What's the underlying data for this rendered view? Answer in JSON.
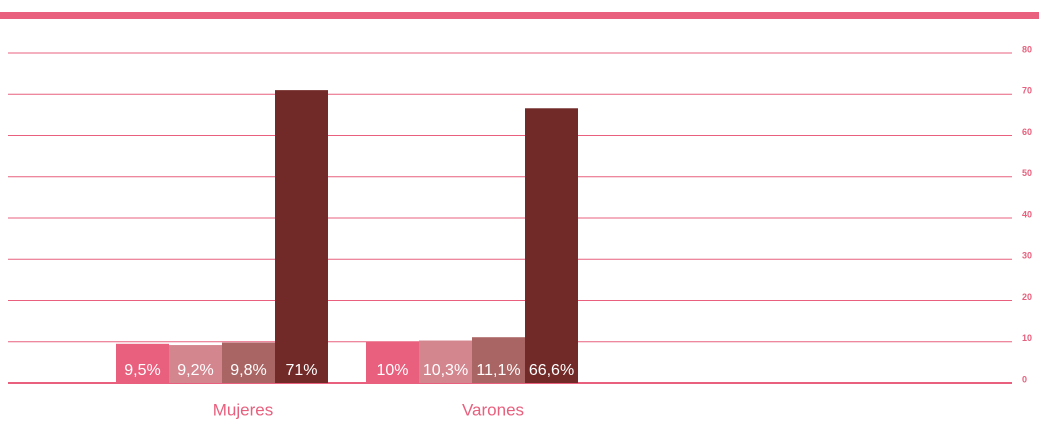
{
  "chart_data": {
    "type": "bar",
    "categories": [
      "Mujeres",
      "Varones"
    ],
    "series": [
      {
        "color": "#e8607e",
        "values": [
          9.5,
          10
        ],
        "value_labels": [
          "9,5%",
          "10%"
        ]
      },
      {
        "color": "#d4868f",
        "values": [
          9.2,
          10.3
        ],
        "value_labels": [
          "9,2%",
          "10,3%"
        ]
      },
      {
        "color": "#a96563",
        "values": [
          9.8,
          11.1
        ],
        "value_labels": [
          "9,8%",
          "11,1%"
        ]
      },
      {
        "color": "#722a28",
        "values": [
          71,
          66.6
        ],
        "value_labels": [
          "71%",
          "66,6%"
        ]
      }
    ],
    "ylim": [
      0,
      80
    ],
    "yticks": [
      0,
      10,
      20,
      30,
      40,
      50,
      60,
      70,
      80
    ],
    "grid": true
  }
}
